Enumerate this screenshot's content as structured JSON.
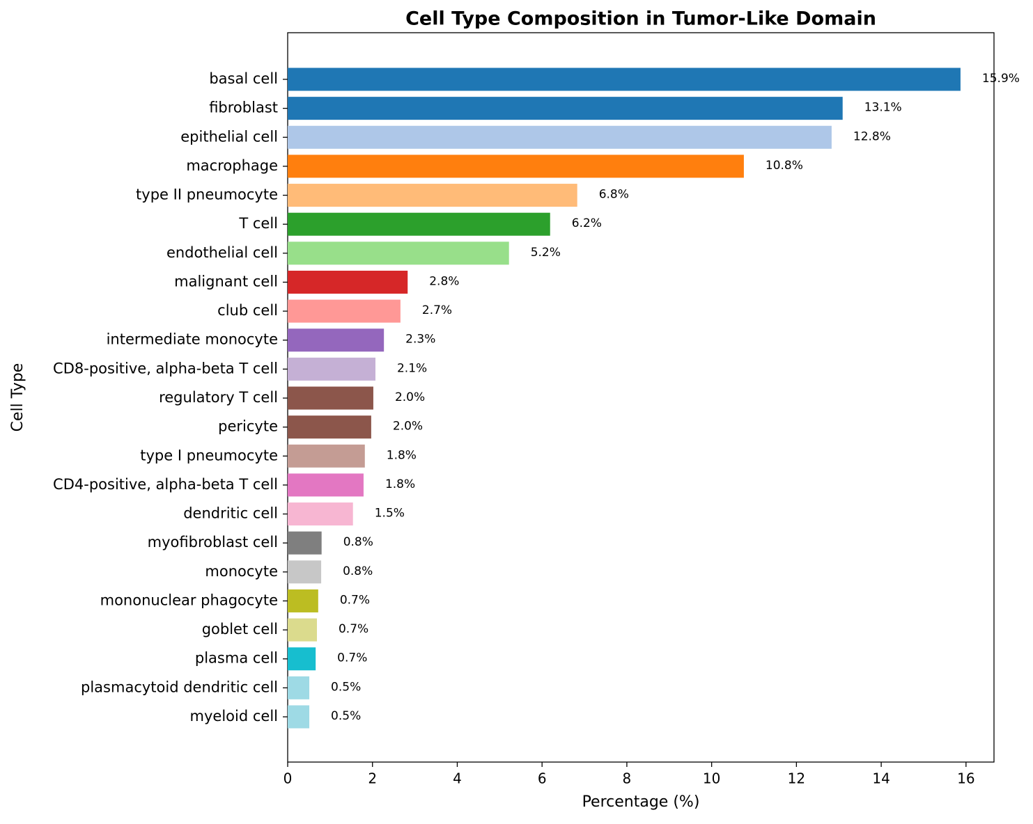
{
  "chart_data": {
    "type": "barh",
    "title": "Cell Type Composition in Tumor-Like Domain",
    "x_label": "Percentage (%)",
    "y_label": "Cell Type",
    "categories": [
      "basal cell",
      "fibroblast",
      "epithelial cell",
      "macrophage",
      "type II pneumocyte",
      "T cell",
      "endothelial cell",
      "malignant cell",
      "club cell",
      "intermediate monocyte",
      "CD8-positive, alpha-beta T cell",
      "regulatory T cell",
      "pericyte",
      "type I pneumocyte",
      "CD4-positive, alpha-beta T cell",
      "dendritic cell",
      "myofibroblast cell",
      "monocyte",
      "mononuclear phagocyte",
      "goblet cell",
      "plasma cell",
      "plasmacytoid dendritic cell",
      "myeloid cell"
    ],
    "values": [
      15.87,
      13.09,
      12.83,
      10.76,
      6.83,
      6.19,
      5.22,
      2.83,
      2.66,
      2.27,
      2.07,
      2.02,
      1.97,
      1.82,
      1.79,
      1.54,
      0.8,
      0.79,
      0.72,
      0.69,
      0.66,
      0.51,
      0.51
    ],
    "value_labels": [
      "15.9%",
      "13.1%",
      "12.8%",
      "10.8%",
      "6.8%",
      "6.2%",
      "5.2%",
      "2.8%",
      "2.7%",
      "2.3%",
      "2.1%",
      "2.0%",
      "2.0%",
      "1.8%",
      "1.8%",
      "1.5%",
      "0.8%",
      "0.8%",
      "0.7%",
      "0.7%",
      "0.7%",
      "0.5%",
      "0.5%"
    ],
    "colors": [
      "#1f77b4",
      "#1f77b4",
      "#aec7e8",
      "#ff7f0e",
      "#ffbb78",
      "#2ca02c",
      "#98df8a",
      "#d62728",
      "#ff9896",
      "#9467bd",
      "#c5b0d5",
      "#8c564b",
      "#8c564b",
      "#c49c94",
      "#e377c2",
      "#f7b6d2",
      "#7f7f7f",
      "#c7c7c7",
      "#bcbd22",
      "#dbdb8d",
      "#17becf",
      "#9edae5",
      "#9edae5"
    ],
    "xlim": [
      0,
      16.66
    ],
    "xticks": [
      0,
      2,
      4,
      6,
      8,
      10,
      12,
      14,
      16
    ]
  }
}
